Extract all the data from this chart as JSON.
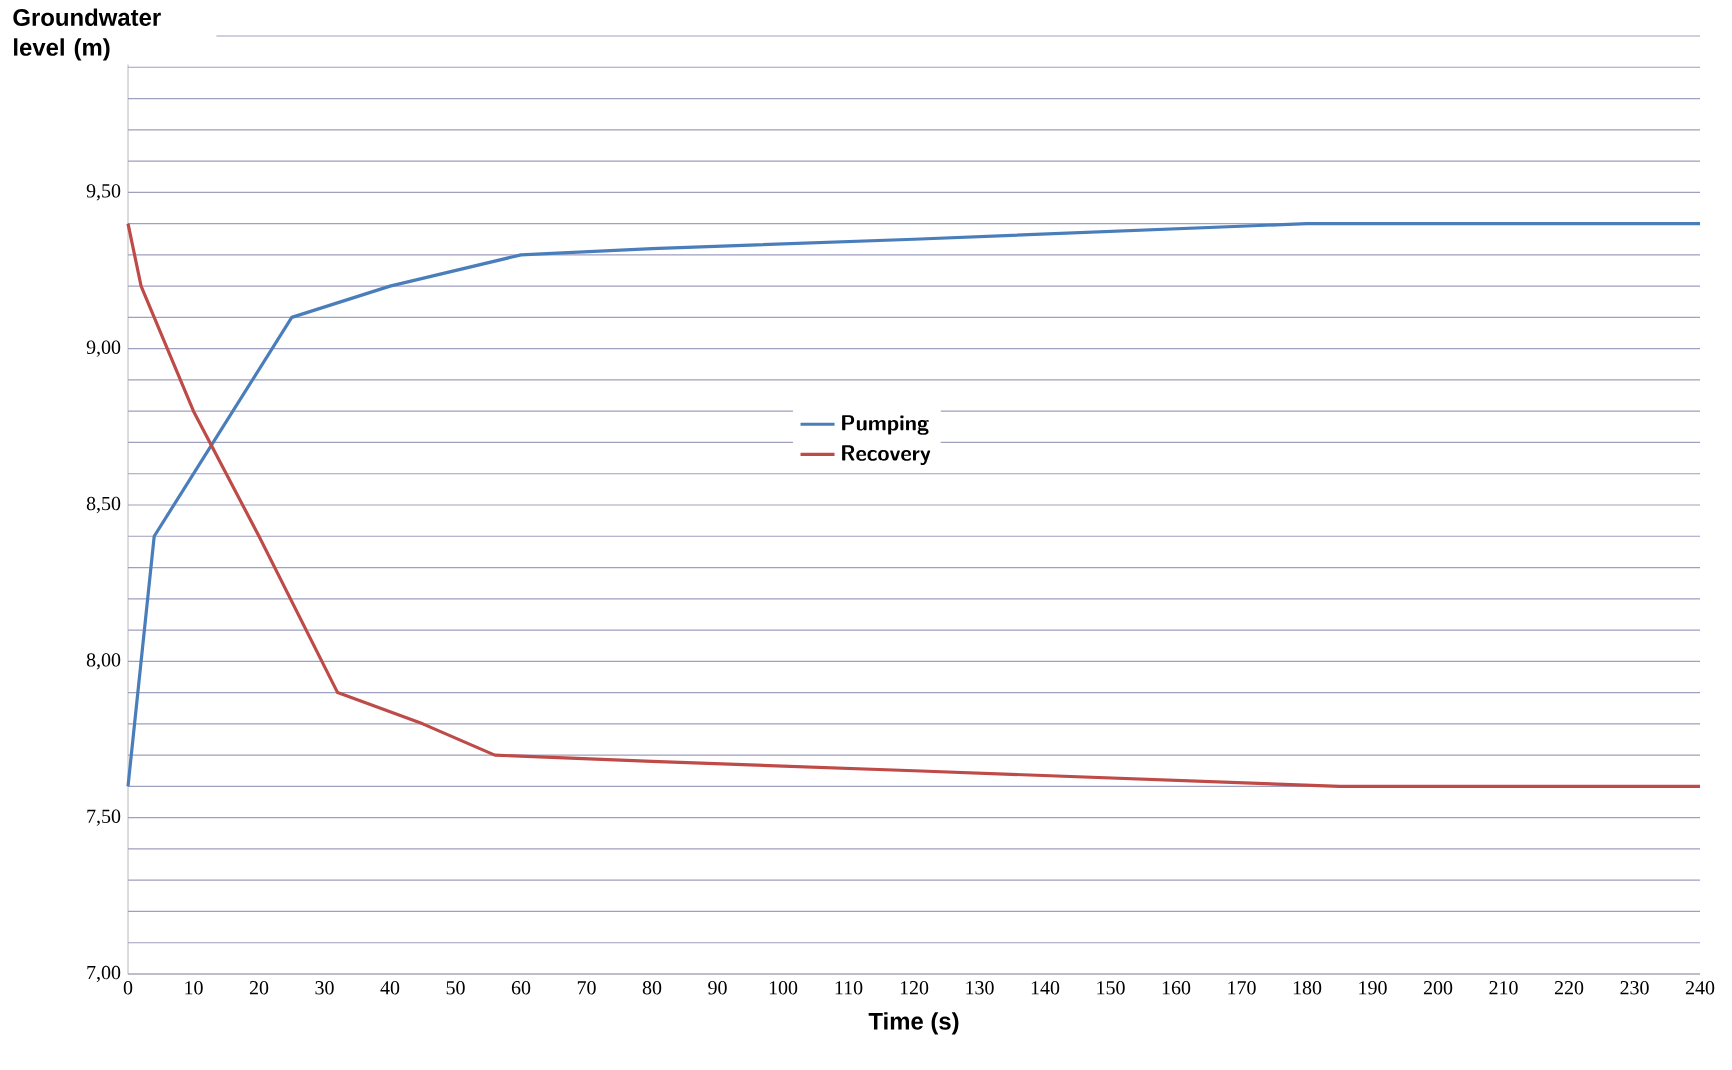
{
  "chart_data": {
    "type": "line",
    "xlabel": "Time (s)",
    "ylabel": "Groundwater level (m)",
    "series": [
      {
        "name": "Pumping",
        "color": "#4a7ebb",
        "x": [
          0,
          4,
          25,
          40,
          60,
          80,
          120,
          180,
          240
        ],
        "values": [
          7.6,
          8.4,
          9.1,
          9.2,
          9.3,
          9.32,
          9.35,
          9.4,
          9.4
        ]
      },
      {
        "name": "Recovery",
        "color": "#be4b48",
        "x": [
          0,
          2,
          10,
          20,
          32,
          45,
          56,
          80,
          120,
          185,
          240
        ],
        "values": [
          9.4,
          9.2,
          8.8,
          8.4,
          7.9,
          7.8,
          7.7,
          7.68,
          7.65,
          7.6,
          7.6
        ]
      }
    ],
    "xlim": [
      0,
      240
    ],
    "ylim": [
      7,
      10
    ],
    "xticks": [
      0,
      10,
      20,
      30,
      40,
      50,
      60,
      70,
      80,
      90,
      100,
      110,
      120,
      130,
      140,
      150,
      160,
      170,
      180,
      190,
      200,
      210,
      220,
      230,
      240
    ],
    "yticks": [
      {
        "value": 7,
        "label": "7,00"
      },
      {
        "value": 7.1,
        "label": null
      },
      {
        "value": 7.2,
        "label": null
      },
      {
        "value": 7.3,
        "label": null
      },
      {
        "value": 7.4,
        "label": null
      },
      {
        "value": 7.5,
        "label": "7,50"
      },
      {
        "value": 7.6,
        "label": null
      },
      {
        "value": 7.7,
        "label": null
      },
      {
        "value": 7.8,
        "label": null
      },
      {
        "value": 7.9,
        "label": null
      },
      {
        "value": 8,
        "label": "8,00"
      },
      {
        "value": 8.1,
        "label": null
      },
      {
        "value": 8.2,
        "label": null
      },
      {
        "value": 8.3,
        "label": null
      },
      {
        "value": 8.4,
        "label": null
      },
      {
        "value": 8.5,
        "label": "8,50"
      },
      {
        "value": 8.6,
        "label": null
      },
      {
        "value": 8.7,
        "label": null
      },
      {
        "value": 8.8,
        "label": null
      },
      {
        "value": 8.9,
        "label": null
      },
      {
        "value": 9,
        "label": "9,00"
      },
      {
        "value": 9.1,
        "label": null
      },
      {
        "value": 9.2,
        "label": null
      },
      {
        "value": 9.3,
        "label": null
      },
      {
        "value": 9.4,
        "label": null
      },
      {
        "value": 9.5,
        "label": "9,50"
      },
      {
        "value": 9.6,
        "label": null
      },
      {
        "value": 9.7,
        "label": null
      },
      {
        "value": 9.8,
        "label": null
      },
      {
        "value": 9.9,
        "label": null
      },
      {
        "value": 10,
        "label": null
      }
    ],
    "grid": "y",
    "legend": "center",
    "marker": "none",
    "line_style": "solid"
  }
}
